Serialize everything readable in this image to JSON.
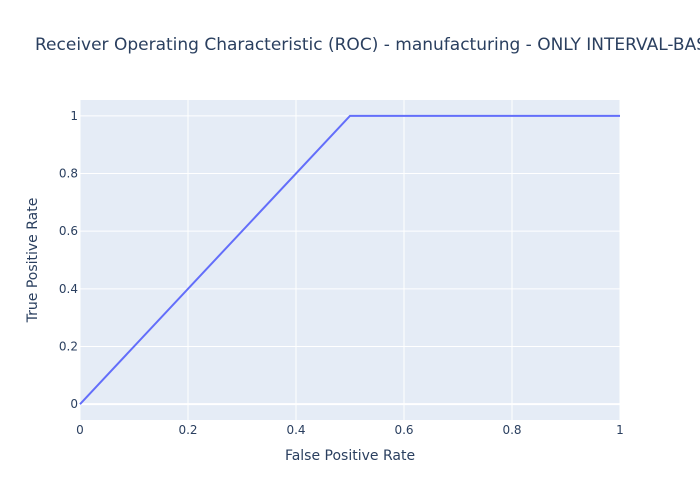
{
  "chart_data": {
    "type": "line",
    "title": "Receiver Operating Characteristic (ROC) - manufacturing - ONLY INTERVAL-BASED",
    "xlabel": "False Positive Rate",
    "ylabel": "True Positive Rate",
    "xlim": [
      0,
      1
    ],
    "ylim": [
      -0.055,
      1.055
    ],
    "x_ticks": [
      0,
      0.2,
      0.4,
      0.6,
      0.8,
      1
    ],
    "x_tick_labels": [
      "0",
      "0.2",
      "0.4",
      "0.6",
      "0.8",
      "1"
    ],
    "y_ticks": [
      0,
      0.2,
      0.4,
      0.6,
      0.8,
      1
    ],
    "y_tick_labels": [
      "0",
      "0.2",
      "0.4",
      "0.6",
      "0.8",
      "1"
    ],
    "grid": true,
    "series": [
      {
        "x": [
          0,
          0.5,
          1
        ],
        "y": [
          0,
          1,
          1
        ],
        "color": "#636efa"
      }
    ],
    "plot_bg": "#e5ecf6",
    "grid_color": "#ffffff"
  }
}
